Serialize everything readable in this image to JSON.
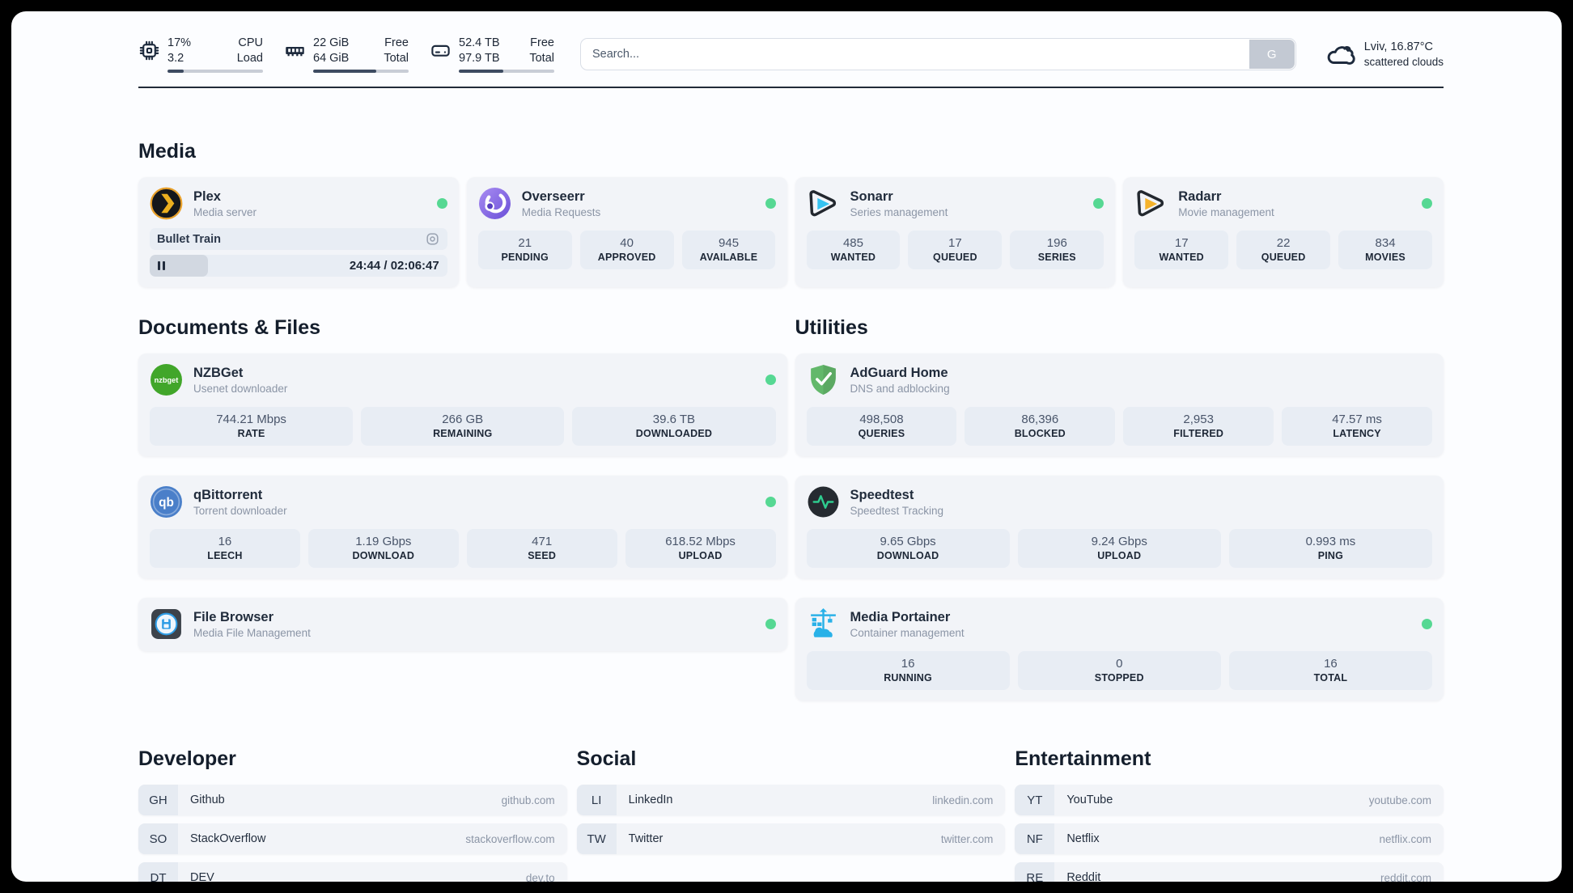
{
  "topbar": {
    "resources": [
      {
        "icon": "cpu-icon",
        "col1": [
          "17%",
          "3.2"
        ],
        "col2": [
          "CPU",
          "Load"
        ],
        "progress_pct": 17
      },
      {
        "icon": "memory-icon",
        "col1": [
          "22 GiB",
          "64 GiB"
        ],
        "col2": [
          "Free",
          "Total"
        ],
        "progress_pct": 66
      },
      {
        "icon": "disk-icon",
        "col1": [
          "52.4 TB",
          "97.9 TB"
        ],
        "col2": [
          "Free",
          "Total"
        ],
        "progress_pct": 47
      }
    ],
    "search": {
      "placeholder": "Search...",
      "button_label": "G"
    },
    "weather": {
      "summary": "Lviv, 16.87°C",
      "condition": "scattered clouds"
    }
  },
  "sections": {
    "media": "Media",
    "documents": "Documents & Files",
    "utilities": "Utilities",
    "developer": "Developer",
    "social": "Social",
    "entertainment": "Entertainment"
  },
  "services": {
    "plex": {
      "name": "Plex",
      "desc": "Media server",
      "now_playing": "Bullet Train",
      "elapsed_total": "24:44 / 02:06:47",
      "progress_pct": 19.5
    },
    "overseerr": {
      "name": "Overseerr",
      "desc": "Media Requests",
      "stats": [
        {
          "value": "21",
          "label": "PENDING"
        },
        {
          "value": "40",
          "label": "APPROVED"
        },
        {
          "value": "945",
          "label": "AVAILABLE"
        }
      ]
    },
    "sonarr": {
      "name": "Sonarr",
      "desc": "Series management",
      "stats": [
        {
          "value": "485",
          "label": "WANTED"
        },
        {
          "value": "17",
          "label": "QUEUED"
        },
        {
          "value": "196",
          "label": "SERIES"
        }
      ]
    },
    "radarr": {
      "name": "Radarr",
      "desc": "Movie management",
      "stats": [
        {
          "value": "17",
          "label": "WANTED"
        },
        {
          "value": "22",
          "label": "QUEUED"
        },
        {
          "value": "834",
          "label": "MOVIES"
        }
      ]
    },
    "nzbget": {
      "name": "NZBGet",
      "desc": "Usenet downloader",
      "stats": [
        {
          "value": "744.21 Mbps",
          "label": "RATE"
        },
        {
          "value": "266 GB",
          "label": "REMAINING"
        },
        {
          "value": "39.6 TB",
          "label": "DOWNLOADED"
        }
      ]
    },
    "qbittorrent": {
      "name": "qBittorrent",
      "desc": "Torrent downloader",
      "stats": [
        {
          "value": "16",
          "label": "LEECH"
        },
        {
          "value": "1.19 Gbps",
          "label": "DOWNLOAD"
        },
        {
          "value": "471",
          "label": "SEED"
        },
        {
          "value": "618.52 Mbps",
          "label": "UPLOAD"
        }
      ]
    },
    "filebrowser": {
      "name": "File Browser",
      "desc": "Media File Management"
    },
    "adguard": {
      "name": "AdGuard Home",
      "desc": "DNS and adblocking",
      "stats": [
        {
          "value": "498,508",
          "label": "QUERIES"
        },
        {
          "value": "86,396",
          "label": "BLOCKED"
        },
        {
          "value": "2,953",
          "label": "FILTERED"
        },
        {
          "value": "47.57 ms",
          "label": "LATENCY"
        }
      ]
    },
    "speedtest": {
      "name": "Speedtest",
      "desc": "Speedtest Tracking",
      "stats": [
        {
          "value": "9.65 Gbps",
          "label": "DOWNLOAD"
        },
        {
          "value": "9.24 Gbps",
          "label": "UPLOAD"
        },
        {
          "value": "0.993 ms",
          "label": "PING"
        }
      ]
    },
    "portainer": {
      "name": "Media Portainer",
      "desc": "Container management",
      "stats": [
        {
          "value": "16",
          "label": "RUNNING"
        },
        {
          "value": "0",
          "label": "STOPPED"
        },
        {
          "value": "16",
          "label": "TOTAL"
        }
      ]
    }
  },
  "bookmarks": {
    "developer": [
      {
        "abbr": "GH",
        "name": "Github",
        "url": "github.com"
      },
      {
        "abbr": "SO",
        "name": "StackOverflow",
        "url": "stackoverflow.com"
      },
      {
        "abbr": "DT",
        "name": "DEV",
        "url": "dev.to"
      }
    ],
    "social": [
      {
        "abbr": "LI",
        "name": "LinkedIn",
        "url": "linkedin.com"
      },
      {
        "abbr": "TW",
        "name": "Twitter",
        "url": "twitter.com"
      }
    ],
    "entertainment": [
      {
        "abbr": "YT",
        "name": "YouTube",
        "url": "youtube.com"
      },
      {
        "abbr": "NF",
        "name": "Netflix",
        "url": "netflix.com"
      },
      {
        "abbr": "RE",
        "name": "Reddit",
        "url": "reddit.com"
      }
    ]
  },
  "colors": {
    "status_green": "#56d893",
    "plex_amber": "#ebaf1f",
    "overseerr_purple": "#7c5ce0",
    "sonarr_cyan": "#36c3f1",
    "radarr_amber": "#f5b32c",
    "nzbget_green": "#41a62a",
    "qbittorrent_blue": "#4a7fc9",
    "adguard_green": "#63b86b",
    "speedtest_pulse": "#2ecc8f",
    "portainer_blue": "#29b1e8"
  }
}
